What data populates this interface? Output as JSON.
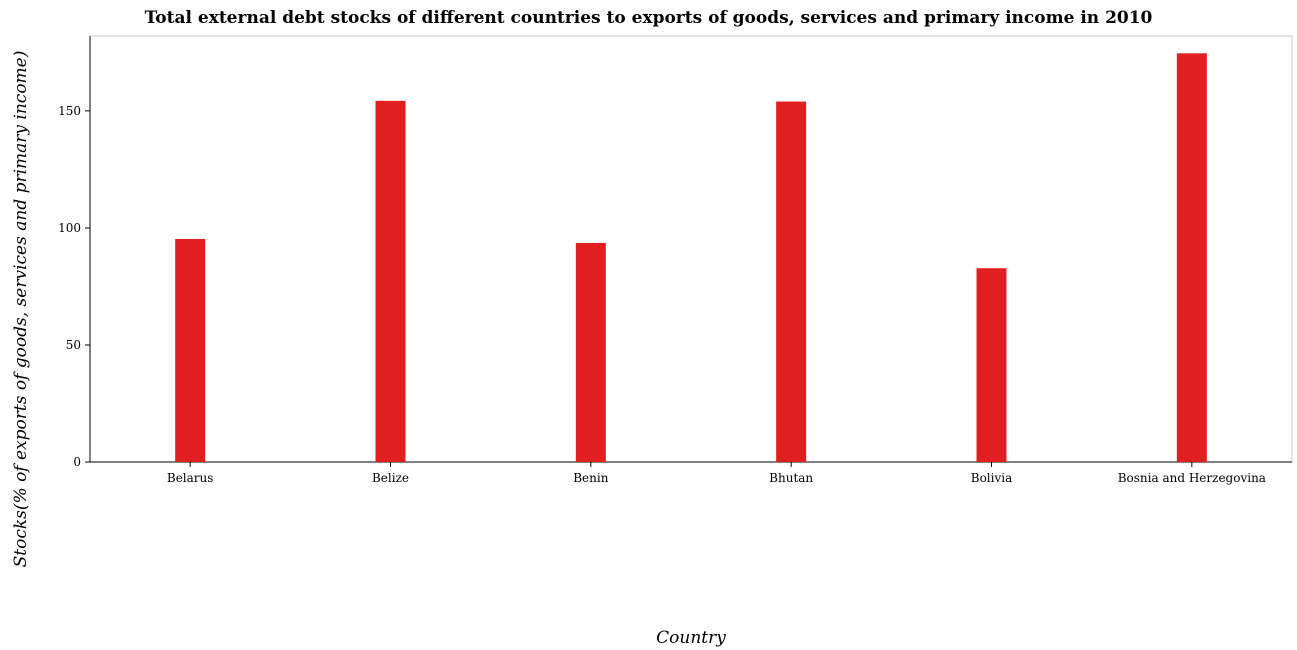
{
  "chart_data": {
    "type": "bar",
    "title": "Total external debt stocks of different countries to exports of goods, services and primary income in 2010",
    "xlabel": "Country",
    "ylabel": "Stocks(% of exports of goods, services and primary income)",
    "categories": [
      "Belarus",
      "Belize",
      "Benin",
      "Bhutan",
      "Bolivia",
      "Bosnia and Herzegovina"
    ],
    "values": [
      95.3,
      154.3,
      93.6,
      154.0,
      82.8,
      174.6
    ],
    "ylim": [
      0,
      182
    ],
    "yticks": [
      0,
      50,
      100,
      150
    ],
    "bar_color": "#e02020",
    "grid": false
  }
}
